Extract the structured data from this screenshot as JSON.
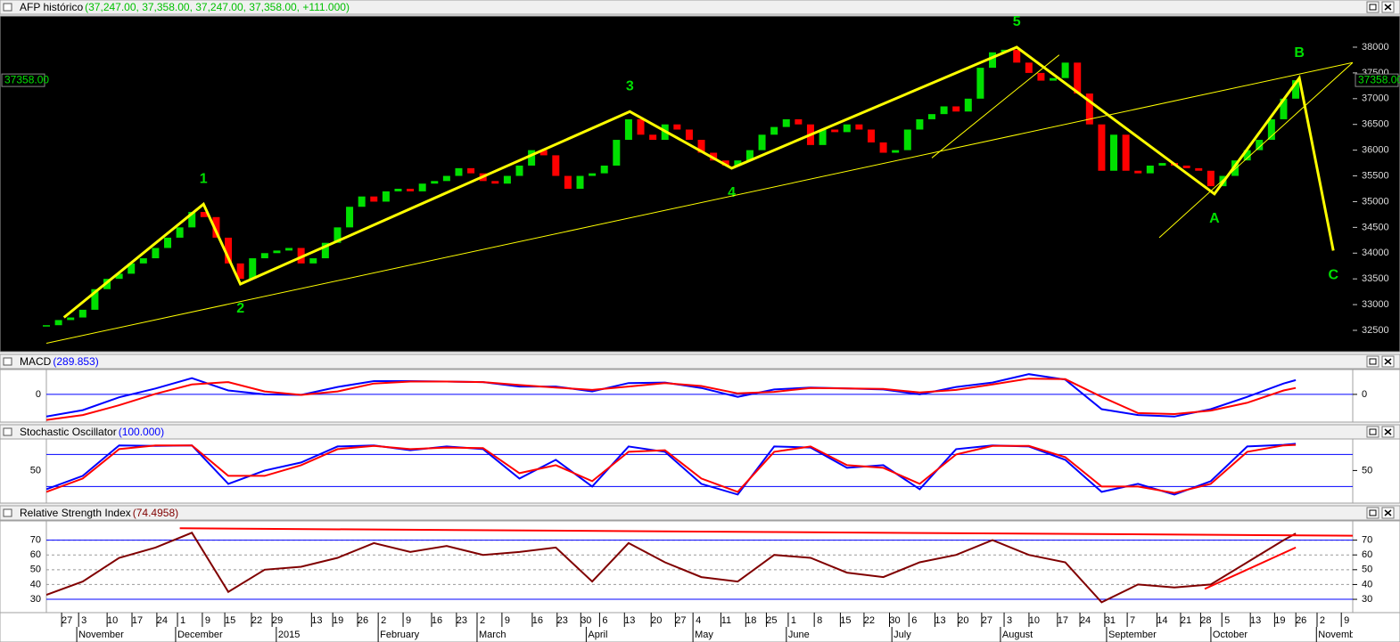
{
  "header": {
    "title": "AFP histórico",
    "values": "(37,247.00, 37,358.00, 37,247.00, 37,358.00, +111.000)",
    "values_color": "#00c000"
  },
  "chart_data": [
    {
      "type": "candle",
      "last_label": "37358.00",
      "up_color": "#00e000",
      "down_color": "#ff0000",
      "xlim": [
        0,
        215.4
      ],
      "ylim": [
        32085,
        38605
      ],
      "yticks": [
        32500,
        33000,
        33500,
        34000,
        34500,
        35000,
        35500,
        36000,
        36500,
        37000,
        37500,
        38000
      ],
      "x": [
        0,
        2,
        4,
        6,
        8,
        10,
        12,
        14,
        16,
        18,
        20,
        22,
        24,
        26,
        28,
        30,
        32,
        34,
        36,
        38,
        40,
        42,
        44,
        46,
        48,
        50,
        52,
        54,
        56,
        58,
        60,
        62,
        64,
        66,
        68,
        70,
        72,
        74,
        76,
        78,
        80,
        82,
        84,
        86,
        88,
        90,
        92,
        94,
        96,
        98,
        100,
        102,
        104,
        106,
        108,
        110,
        112,
        114,
        116,
        118,
        120,
        122,
        124,
        126,
        128,
        130,
        132,
        134,
        136,
        138,
        140,
        142,
        144,
        146,
        148,
        150,
        152,
        154,
        156,
        158,
        160,
        162,
        164,
        166,
        168,
        170,
        172,
        174,
        176,
        178,
        180,
        182,
        184,
        186,
        188,
        190,
        192,
        194,
        196,
        198,
        200,
        202,
        204,
        206
      ],
      "values": [
        32600,
        32700,
        32750,
        32900,
        33300,
        33500,
        33600,
        33800,
        33900,
        34100,
        34300,
        34500,
        34800,
        34700,
        34300,
        33800,
        33500,
        33900,
        34000,
        34050,
        34100,
        33800,
        33900,
        34200,
        34500,
        34900,
        35100,
        35000,
        35200,
        35250,
        35200,
        35350,
        35400,
        35500,
        35650,
        35550,
        35400,
        35350,
        35500,
        35700,
        36000,
        35900,
        35500,
        35250,
        35500,
        35550,
        35700,
        36200,
        36600,
        36300,
        36200,
        36500,
        36400,
        36200,
        35950,
        35800,
        35700,
        35800,
        36000,
        36300,
        36450,
        36600,
        36500,
        36100,
        36400,
        36350,
        36500,
        36400,
        36150,
        35950,
        36000,
        36400,
        36600,
        36700,
        36850,
        36750,
        37000,
        37600,
        37900,
        37950,
        37700,
        37500,
        37350,
        37400,
        37700,
        37100,
        36500,
        35600,
        36300,
        35600,
        35550,
        35700,
        35750,
        35700,
        35650,
        35600,
        35300,
        35500,
        35800,
        36000,
        36200,
        36600,
        37000,
        37358
      ],
      "waves": {
        "color": "#ffff00",
        "x": [
          2.9,
          25.9,
          32,
          96.2,
          113,
          160,
          192.6,
          206.6,
          212.2
        ],
        "values": [
          32750,
          34950,
          33400,
          36750,
          35650,
          38000,
          35150,
          37400,
          34050
        ],
        "labels": [
          null,
          "1",
          "2",
          "3",
          "4",
          "5",
          "A",
          "B",
          "C"
        ],
        "label_color": "#00e000"
      },
      "trendlines": [
        {
          "color": "#ffff00",
          "x": [
            0,
            215.4
          ],
          "values": [
            32250,
            37700
          ]
        },
        {
          "color": "#ffff00",
          "x": [
            183.5,
            215.4
          ],
          "values": [
            34300,
            37700
          ]
        },
        {
          "color": "#ffff00",
          "x": [
            146,
            167
          ],
          "values": [
            35850,
            37850
          ]
        }
      ]
    },
    {
      "type": "line",
      "title": "MACD",
      "subtitle": "(289.853)",
      "subtitle_color": "#0000ff",
      "xlim": [
        0,
        215.4
      ],
      "ylim": [
        -563,
        505
      ],
      "yticks": [
        0
      ],
      "hlines": [
        0
      ],
      "hline_color": "#0000ff",
      "x": [
        0,
        6,
        12,
        18,
        24,
        30,
        36,
        42,
        48,
        54,
        60,
        66,
        72,
        78,
        84,
        90,
        96,
        102,
        108,
        114,
        120,
        126,
        132,
        138,
        144,
        150,
        156,
        162,
        168,
        174,
        180,
        186,
        192,
        198,
        204,
        206
      ],
      "series": [
        {
          "color": "#0000ff",
          "values": [
            -450,
            -320,
            -60,
            120,
            330,
            80,
            0,
            -10,
            150,
            270,
            270,
            260,
            250,
            160,
            160,
            60,
            230,
            240,
            130,
            -50,
            100,
            140,
            120,
            100,
            0,
            150,
            240,
            410,
            300,
            -300,
            -420,
            -450,
            -300,
            -50,
            220,
            290
          ]
        },
        {
          "color": "#ff0000",
          "values": [
            -520,
            -420,
            -220,
            10,
            200,
            250,
            60,
            -10,
            60,
            220,
            260,
            260,
            250,
            190,
            140,
            90,
            160,
            230,
            170,
            20,
            50,
            130,
            120,
            110,
            40,
            90,
            200,
            320,
            310,
            -50,
            -380,
            -400,
            -330,
            -170,
            80,
            130
          ]
        }
      ]
    },
    {
      "type": "line",
      "title": "Stochastic Oscillator",
      "subtitle": "(100.000)",
      "subtitle_color": "#0000ff",
      "xlim": [
        0,
        215.4
      ],
      "ylim": [
        -11,
        109
      ],
      "yticks": [
        50
      ],
      "hlines": [
        20,
        80
      ],
      "hline_color": "#0000ff",
      "x": [
        0,
        6,
        12,
        18,
        24,
        30,
        36,
        42,
        48,
        54,
        60,
        66,
        72,
        78,
        84,
        90,
        96,
        102,
        108,
        114,
        120,
        126,
        132,
        138,
        144,
        150,
        156,
        162,
        168,
        174,
        180,
        186,
        192,
        198,
        204,
        206
      ],
      "series": [
        {
          "color": "#0000ff",
          "values": [
            15,
            40,
            97,
            96,
            97,
            25,
            50,
            65,
            95,
            97,
            88,
            95,
            90,
            35,
            70,
            20,
            95,
            85,
            25,
            5,
            95,
            93,
            55,
            60,
            15,
            90,
            97,
            95,
            70,
            10,
            25,
            5,
            30,
            95,
            98,
            100
          ]
        },
        {
          "color": "#ff0000",
          "values": [
            10,
            35,
            90,
            97,
            97,
            40,
            40,
            60,
            90,
            96,
            90,
            93,
            92,
            45,
            60,
            30,
            85,
            88,
            35,
            10,
            85,
            95,
            60,
            55,
            25,
            80,
            96,
            96,
            75,
            20,
            20,
            8,
            25,
            85,
            97,
            98
          ]
        }
      ]
    },
    {
      "type": "line",
      "title": "Relative Strength Index",
      "subtitle": "(74.4958)",
      "subtitle_color": "#800000",
      "xlim": [
        0,
        215.4
      ],
      "ylim": [
        21,
        83
      ],
      "yticks": [
        30,
        40,
        50,
        60,
        70
      ],
      "grid": true,
      "hlines": [
        30,
        70
      ],
      "hline_color": "#0000ff",
      "x": [
        0,
        6,
        12,
        18,
        24,
        30,
        36,
        42,
        48,
        54,
        60,
        66,
        72,
        78,
        84,
        90,
        96,
        102,
        108,
        114,
        120,
        126,
        132,
        138,
        144,
        150,
        156,
        162,
        168,
        174,
        180,
        186,
        192,
        198,
        204,
        206
      ],
      "series": [
        {
          "color": "#800000",
          "values": [
            33,
            42,
            58,
            65,
            75,
            35,
            50,
            52,
            58,
            68,
            62,
            66,
            60,
            62,
            65,
            42,
            68,
            55,
            45,
            42,
            60,
            58,
            48,
            45,
            55,
            60,
            70,
            60,
            55,
            28,
            40,
            38,
            40,
            55,
            70,
            74.5
          ]
        }
      ],
      "trendlines": [
        {
          "color": "#ff0000",
          "x": [
            22,
            215.4
          ],
          "values": [
            78,
            73
          ]
        },
        {
          "color": "#ff0000",
          "x": [
            191,
            206
          ],
          "values": [
            37,
            65
          ]
        }
      ]
    }
  ],
  "x_axis": {
    "ticks": [
      {
        "value": 3.4,
        "label": "27"
      },
      {
        "value": 6.2,
        "label": "3"
      },
      {
        "value": 10.9,
        "label": "10"
      },
      {
        "value": 15,
        "label": "17"
      },
      {
        "value": 19.1,
        "label": "24"
      },
      {
        "value": 22.5,
        "label": "1"
      },
      {
        "value": 26.6,
        "label": "9"
      },
      {
        "value": 30.3,
        "label": "15"
      },
      {
        "value": 34.7,
        "label": "22"
      },
      {
        "value": 38.1,
        "label": "29"
      },
      {
        "value": 44.6,
        "label": "13"
      },
      {
        "value": 48.1,
        "label": "19"
      },
      {
        "value": 52.2,
        "label": "26"
      },
      {
        "value": 55.6,
        "label": "2"
      },
      {
        "value": 59.7,
        "label": "9"
      },
      {
        "value": 64.4,
        "label": "16"
      },
      {
        "value": 68.5,
        "label": "23"
      },
      {
        "value": 71.9,
        "label": "2"
      },
      {
        "value": 76,
        "label": "9"
      },
      {
        "value": 81,
        "label": "16"
      },
      {
        "value": 85.1,
        "label": "23"
      },
      {
        "value": 89,
        "label": "30"
      },
      {
        "value": 92.1,
        "label": "6"
      },
      {
        "value": 96.2,
        "label": "13"
      },
      {
        "value": 100.6,
        "label": "20"
      },
      {
        "value": 104.6,
        "label": "27"
      },
      {
        "value": 107.5,
        "label": "4"
      },
      {
        "value": 112.1,
        "label": "11"
      },
      {
        "value": 116.2,
        "label": "18"
      },
      {
        "value": 119.6,
        "label": "25"
      },
      {
        "value": 123.2,
        "label": "1"
      },
      {
        "value": 127.5,
        "label": "8"
      },
      {
        "value": 131.8,
        "label": "15"
      },
      {
        "value": 135.7,
        "label": "22"
      },
      {
        "value": 139.9,
        "label": "30"
      },
      {
        "value": 143.1,
        "label": "6"
      },
      {
        "value": 147.4,
        "label": "13"
      },
      {
        "value": 151.2,
        "label": "20"
      },
      {
        "value": 155.1,
        "label": "27"
      },
      {
        "value": 158.8,
        "label": "3"
      },
      {
        "value": 162.9,
        "label": "10"
      },
      {
        "value": 167.6,
        "label": "17"
      },
      {
        "value": 171.3,
        "label": "24"
      },
      {
        "value": 175.4,
        "label": "31"
      },
      {
        "value": 179.1,
        "label": "7"
      },
      {
        "value": 184,
        "label": "14"
      },
      {
        "value": 187.9,
        "label": "21"
      },
      {
        "value": 191.2,
        "label": "28"
      },
      {
        "value": 194.7,
        "label": "5"
      },
      {
        "value": 199.4,
        "label": "13"
      },
      {
        "value": 203.4,
        "label": "19"
      },
      {
        "value": 206.9,
        "label": "26"
      },
      {
        "value": 210.4,
        "label": "2"
      },
      {
        "value": 214.4,
        "label": "9"
      }
    ],
    "months": [
      {
        "value": 5.6,
        "label": "November"
      },
      {
        "value": 21.9,
        "label": "December"
      },
      {
        "value": 38.5,
        "label": "2015"
      },
      {
        "value": 55.3,
        "label": "February"
      },
      {
        "value": 71.6,
        "label": "March"
      },
      {
        "value": 89.6,
        "label": "April"
      },
      {
        "value": 107.2,
        "label": "May"
      },
      {
        "value": 122.6,
        "label": "June"
      },
      {
        "value": 140,
        "label": "July"
      },
      {
        "value": 157.9,
        "label": "August"
      },
      {
        "value": 175.4,
        "label": "September"
      },
      {
        "value": 192.6,
        "label": "October"
      },
      {
        "value": 210,
        "label": "November"
      }
    ]
  }
}
